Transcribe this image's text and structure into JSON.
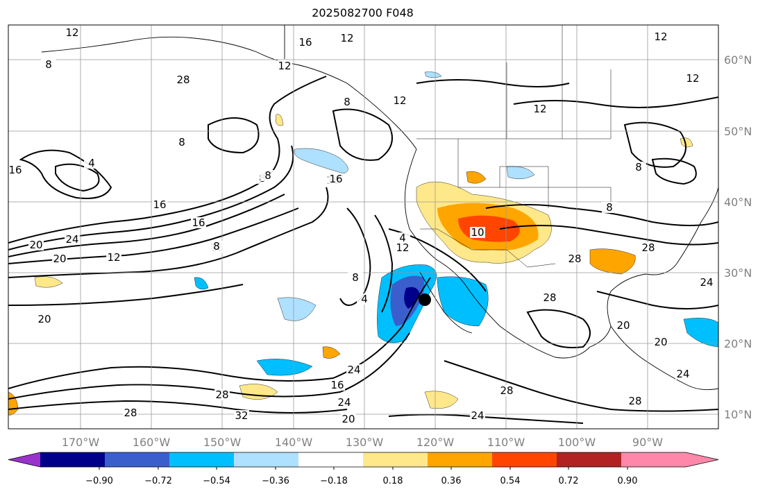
{
  "title": "2025082700 F048",
  "map": {
    "type": "contour-map",
    "description_fields": [
      "shaded field",
      "black contours"
    ],
    "lon_labels": [
      "170°W",
      "160°W",
      "150°W",
      "140°W",
      "130°W",
      "120°W",
      "110°W",
      "100°W",
      "90°W"
    ],
    "lat_labels": [
      "60°N",
      "50°N",
      "40°N",
      "30°N",
      "20°N",
      "10°N"
    ],
    "contour_labels": [
      "4",
      "8",
      "12",
      "16",
      "12",
      "16",
      "20",
      "20",
      "24",
      "12",
      "16",
      "8",
      "16",
      "12",
      "16",
      "8",
      "4",
      "8",
      "4",
      "4",
      "12",
      "16",
      "20",
      "24",
      "28",
      "32",
      "28",
      "20",
      "24",
      "16",
      "10",
      "8",
      "28",
      "28",
      "20",
      "28",
      "12",
      "12",
      "12",
      "8",
      "28",
      "24",
      "20",
      "24",
      "24",
      "28",
      "28",
      "8",
      "8",
      "16",
      "12",
      "8",
      "12"
    ],
    "marker": "black-dot",
    "grid": true
  },
  "colorbar": {
    "ticks": [
      "−0.90",
      "−0.72",
      "−0.54",
      "−0.36",
      "−0.18",
      "0.18",
      "0.36",
      "0.54",
      "0.72",
      "0.90"
    ],
    "colors": [
      "#9933cc",
      "#00008b",
      "#3a5fcd",
      "#00bfff",
      "#aee0ff",
      "#ffffff",
      "#ffe88a",
      "#ffa500",
      "#ff4500",
      "#b22222",
      "#ff88aa"
    ]
  }
}
